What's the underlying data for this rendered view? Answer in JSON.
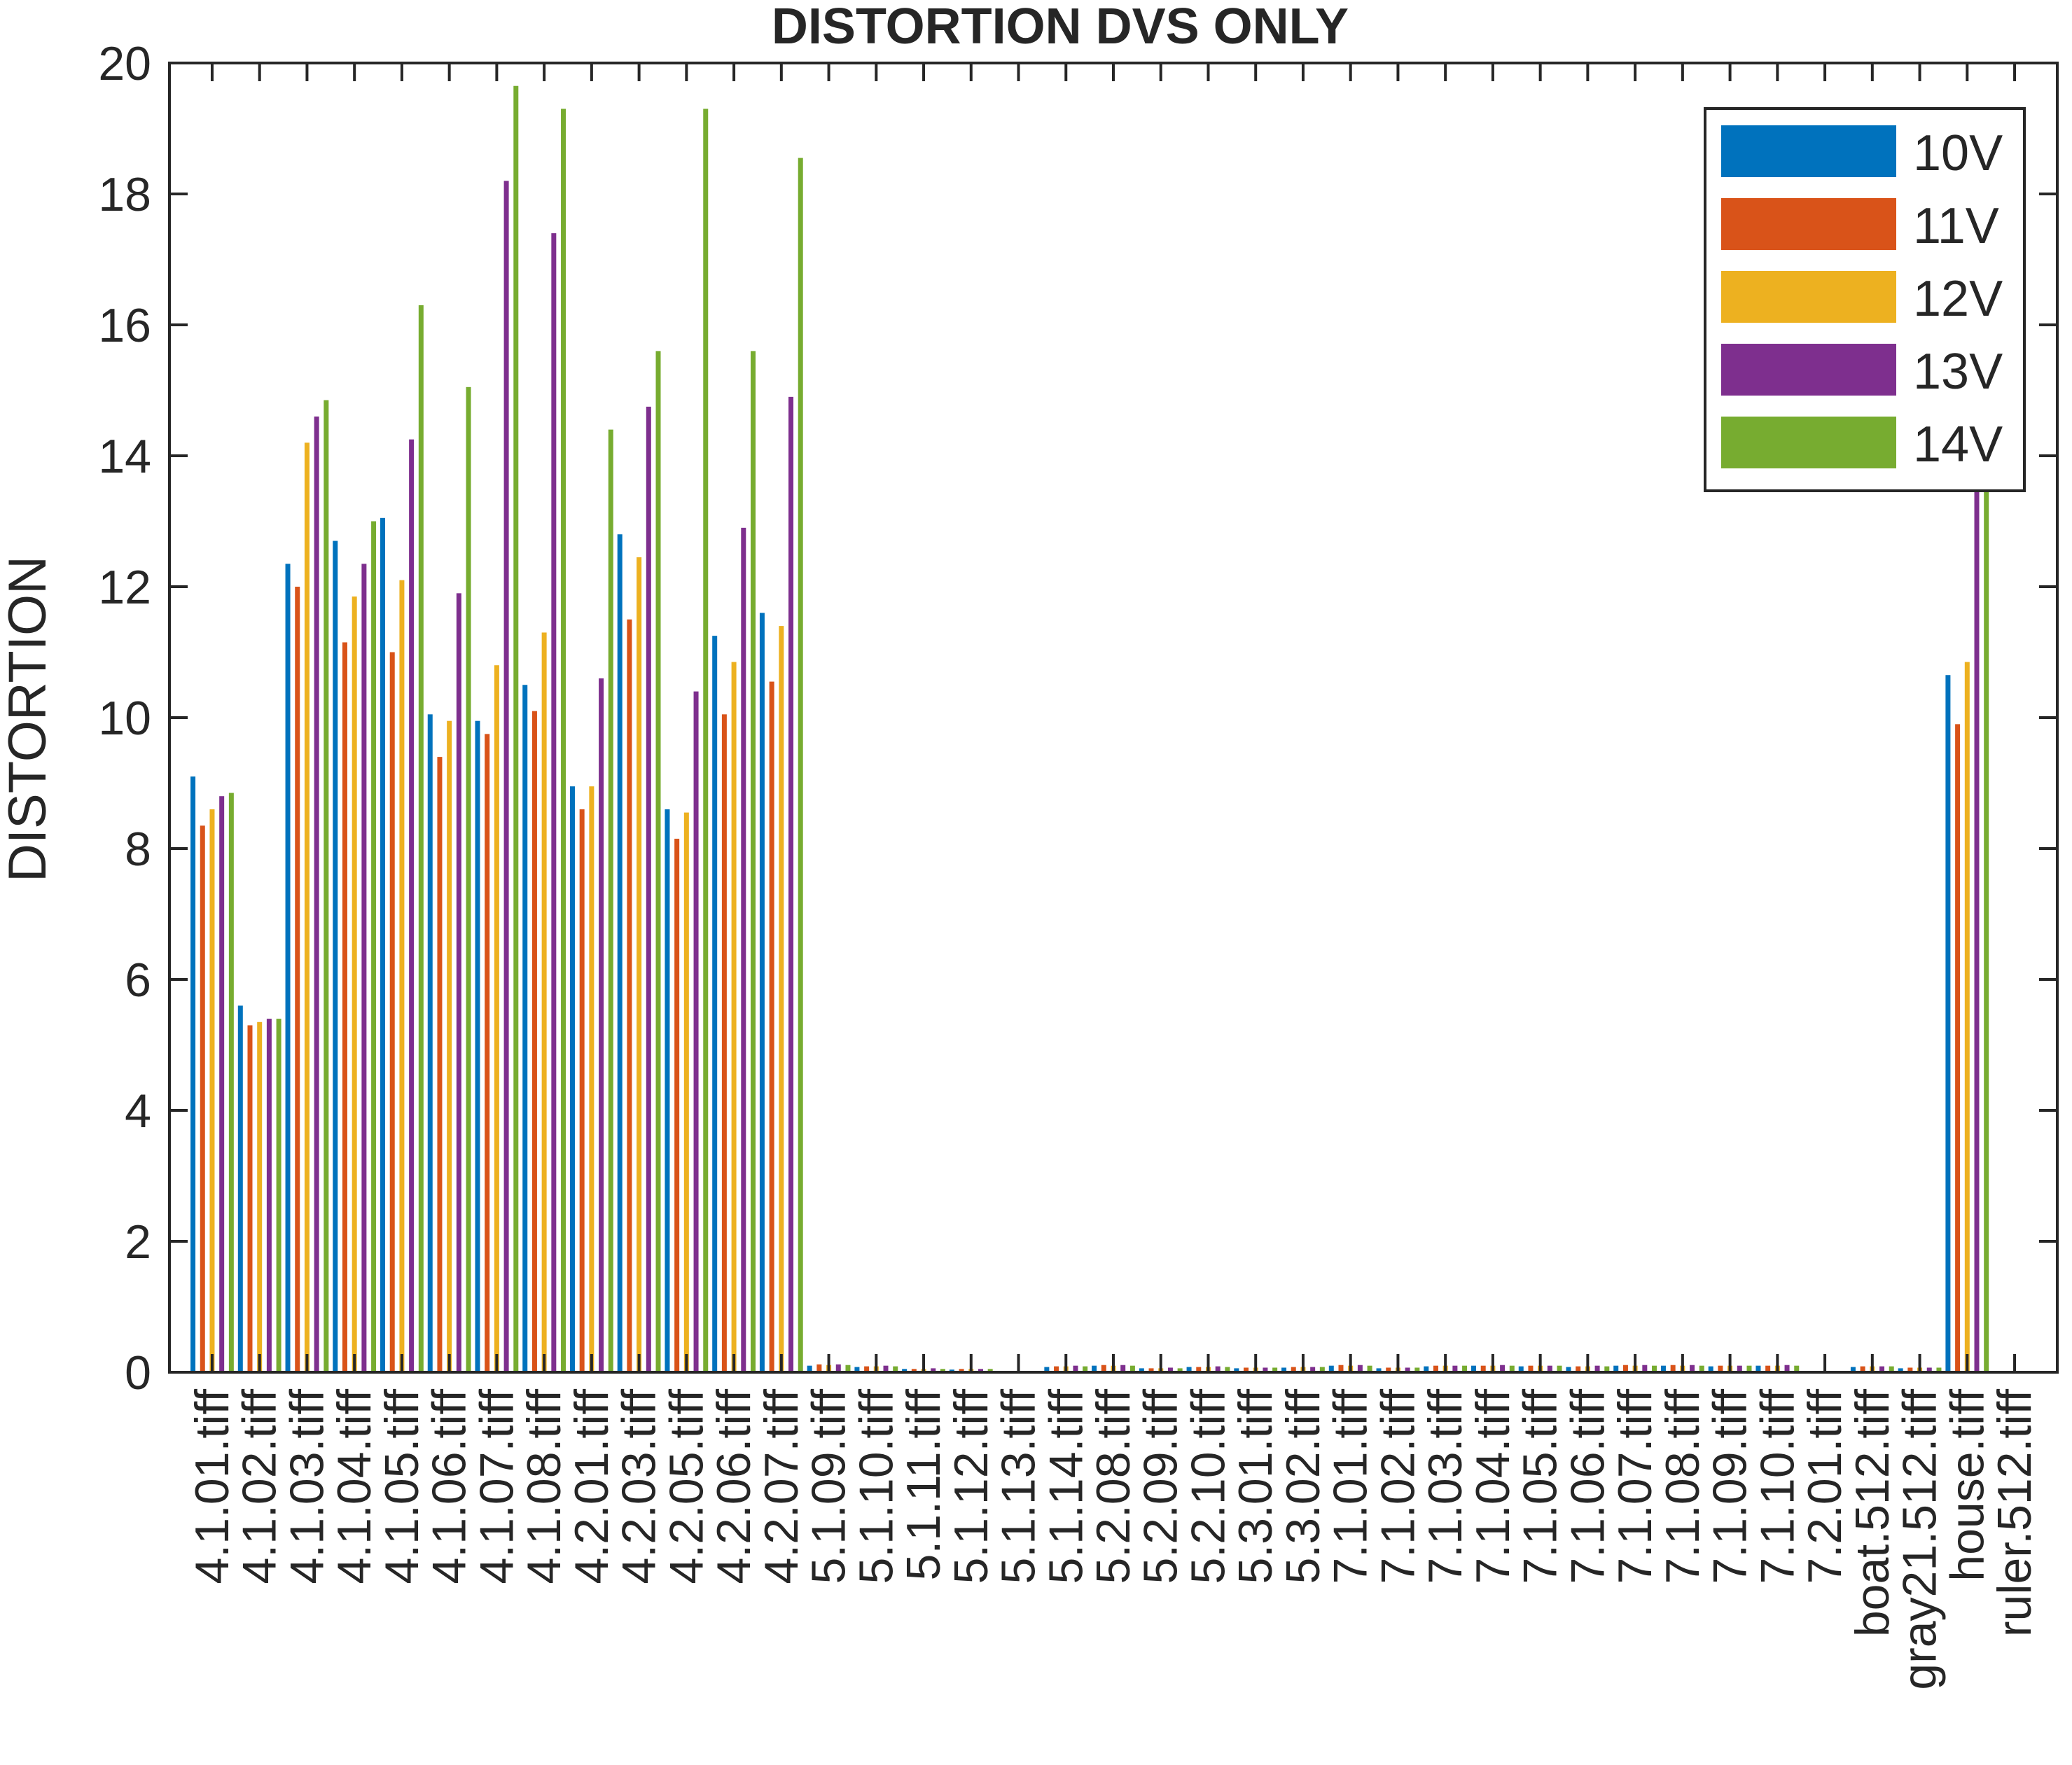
{
  "chart_data": {
    "type": "bar",
    "title": "DISTORTION DVS ONLY",
    "xlabel": "",
    "ylabel": "DISTORTION",
    "ylim": [
      0,
      20
    ],
    "yticks": [
      0,
      2,
      4,
      6,
      8,
      10,
      12,
      14,
      16,
      18,
      20
    ],
    "grid": false,
    "legend_position": "top-right",
    "categories": [
      "4.1.01.tiff",
      "4.1.02.tiff",
      "4.1.03.tiff",
      "4.1.04.tiff",
      "4.1.05.tiff",
      "4.1.06.tiff",
      "4.1.07.tiff",
      "4.1.08.tiff",
      "4.2.01.tiff",
      "4.2.03.tiff",
      "4.2.05.tiff",
      "4.2.06.tiff",
      "4.2.07.tiff",
      "5.1.09.tiff",
      "5.1.10.tiff",
      "5.1.11.tiff",
      "5.1.12.tiff",
      "5.1.13.tiff",
      "5.1.14.tiff",
      "5.2.08.tiff",
      "5.2.09.tiff",
      "5.2.10.tiff",
      "5.3.01.tiff",
      "5.3.02.tiff",
      "7.1.01.tiff",
      "7.1.02.tiff",
      "7.1.03.tiff",
      "7.1.04.tiff",
      "7.1.05.tiff",
      "7.1.06.tiff",
      "7.1.07.tiff",
      "7.1.08.tiff",
      "7.1.09.tiff",
      "7.1.10.tiff",
      "7.2.01.tiff",
      "boat.512.tiff",
      "gray21.512.tiff",
      "house.tiff",
      "ruler.512.tiff"
    ],
    "series": [
      {
        "name": "10V",
        "color": "#0072BD",
        "values": [
          9.1,
          5.6,
          12.35,
          12.7,
          13.05,
          10.05,
          9.95,
          10.5,
          8.95,
          12.8,
          8.6,
          11.25,
          11.6,
          0.1,
          0.08,
          0.05,
          0.04,
          0,
          0.08,
          0.1,
          0.06,
          0.08,
          0.06,
          0.07,
          0.1,
          0.06,
          0.09,
          0.1,
          0.09,
          0.08,
          0.1,
          0.1,
          0.09,
          0.1,
          0,
          0.08,
          0.06,
          10.65,
          0
        ]
      },
      {
        "name": "11V",
        "color": "#D95319",
        "values": [
          8.35,
          5.3,
          12.0,
          11.15,
          11.0,
          9.4,
          9.75,
          10.1,
          8.6,
          11.5,
          8.15,
          10.05,
          10.55,
          0.12,
          0.09,
          0.05,
          0.05,
          0,
          0.09,
          0.11,
          0.06,
          0.08,
          0.07,
          0.08,
          0.11,
          0.07,
          0.1,
          0.1,
          0.1,
          0.09,
          0.11,
          0.11,
          0.1,
          0.1,
          0,
          0.09,
          0.07,
          9.9,
          0
        ]
      },
      {
        "name": "12V",
        "color": "#EDB120",
        "values": [
          8.6,
          5.35,
          14.2,
          11.85,
          12.1,
          9.95,
          10.8,
          11.3,
          8.95,
          12.45,
          8.55,
          10.85,
          11.4,
          0.11,
          0.09,
          0.05,
          0.05,
          0,
          0.09,
          0.1,
          0.06,
          0.08,
          0.07,
          0.08,
          0.1,
          0.07,
          0.1,
          0.1,
          0.1,
          0.09,
          0.1,
          0.1,
          0.1,
          0.1,
          0,
          0.09,
          0.07,
          10.85,
          0
        ]
      },
      {
        "name": "13V",
        "color": "#7E2F8E",
        "values": [
          8.8,
          5.4,
          14.6,
          12.35,
          14.25,
          11.9,
          18.2,
          17.4,
          10.6,
          14.75,
          10.4,
          12.9,
          14.9,
          0.12,
          0.1,
          0.06,
          0.05,
          0,
          0.1,
          0.11,
          0.07,
          0.09,
          0.07,
          0.08,
          0.11,
          0.07,
          0.1,
          0.11,
          0.1,
          0.1,
          0.11,
          0.11,
          0.1,
          0.11,
          0,
          0.09,
          0.07,
          13.55,
          0
        ]
      },
      {
        "name": "14V",
        "color": "#77AC30",
        "values": [
          8.85,
          5.4,
          14.85,
          13.0,
          16.3,
          15.05,
          19.65,
          19.3,
          14.4,
          15.6,
          19.3,
          15.6,
          18.55,
          0.11,
          0.09,
          0.05,
          0.05,
          0,
          0.09,
          0.1,
          0.06,
          0.08,
          0.07,
          0.08,
          0.1,
          0.07,
          0.1,
          0.1,
          0.1,
          0.09,
          0.1,
          0.1,
          0.1,
          0.1,
          0,
          0.09,
          0.07,
          13.6,
          0
        ]
      }
    ]
  }
}
